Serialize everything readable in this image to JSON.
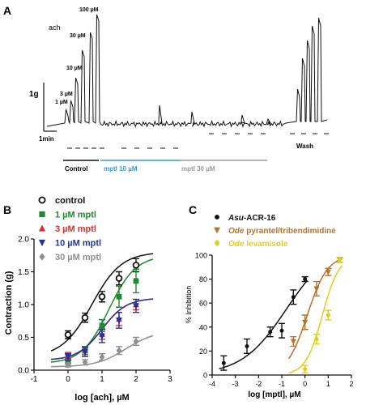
{
  "panel_labels": {
    "A": "A",
    "B": "B",
    "C": "C"
  },
  "panel_a": {
    "agonist_label": "ach",
    "conc_labels": [
      "1 µM",
      "3 µM",
      "10 µM",
      "30 µM",
      "100 µM"
    ],
    "scale_force": "1g",
    "scale_time": "1min",
    "bar_labels": {
      "control": "Control",
      "mptl10": "mptl 10 µM",
      "mptl30": "mptl 30 µM",
      "wash": "Wash"
    },
    "colors": {
      "trace": "#111111",
      "mptl10": "#2e9bd6",
      "mptl30": "#9a9a9a"
    }
  },
  "chart_data": [
    {
      "type": "scatter",
      "xlabel": "log [ach], µM",
      "ylabel": "Contraction (g)",
      "xlim": [
        -1,
        3
      ],
      "ylim": [
        0,
        2.0
      ],
      "xticks": [
        -1,
        0,
        1,
        2,
        3
      ],
      "yticks": [
        0.0,
        0.5,
        1.0,
        1.5,
        2.0
      ],
      "ytick_labels": [
        "0.0",
        "0.5",
        "1.0",
        "1.5",
        "2.0"
      ],
      "legend_position": "top-left",
      "series": [
        {
          "name": "control",
          "color": "#111111",
          "marker": "open-circle",
          "x": [
            0,
            0.5,
            1,
            1.5,
            2
          ],
          "y": [
            0.54,
            0.8,
            1.12,
            1.4,
            1.6
          ],
          "err": [
            0.06,
            0.07,
            0.08,
            0.1,
            0.1
          ],
          "fit": {
            "bottom": 0.2,
            "top": 1.8,
            "logEC50": 0.7,
            "hill": 1.0
          }
        },
        {
          "name": "1 µM mptl",
          "color": "#1e8a2e",
          "marker": "square",
          "x": [
            0,
            0.5,
            1,
            1.5,
            2
          ],
          "y": [
            0.14,
            0.3,
            0.68,
            1.12,
            1.36
          ],
          "err": [
            0.04,
            0.06,
            0.09,
            0.16,
            0.18
          ],
          "fit": {
            "bottom": 0.1,
            "top": 1.75,
            "logEC50": 1.2,
            "hill": 1.1
          }
        },
        {
          "name": "3 µM mptl",
          "color": "#d9302c",
          "marker": "triangle-up",
          "x": [
            0,
            0.5,
            1,
            1.5,
            2
          ],
          "y": [
            0.22,
            0.3,
            0.55,
            0.78,
            1.0
          ],
          "err": [
            0.05,
            0.06,
            0.08,
            0.1,
            0.08
          ],
          "fit": {
            "bottom": 0.15,
            "top": 1.1,
            "logEC50": 1.0,
            "hill": 1.2
          }
        },
        {
          "name": "10 µM mptl",
          "color": "#22339c",
          "marker": "triangle-down",
          "x": [
            0,
            0.5,
            1,
            1.5,
            2
          ],
          "y": [
            0.2,
            0.28,
            0.52,
            0.76,
            0.98
          ],
          "err": [
            0.05,
            0.07,
            0.1,
            0.12,
            0.1
          ],
          "fit": {
            "bottom": 0.15,
            "top": 1.1,
            "logEC50": 1.0,
            "hill": 1.2
          }
        },
        {
          "name": "30 µM mptl",
          "color": "#8f8f8f",
          "marker": "diamond",
          "x": [
            0,
            0.5,
            1,
            1.5,
            2
          ],
          "y": [
            0.08,
            0.12,
            0.2,
            0.3,
            0.44
          ],
          "err": [
            0.03,
            0.04,
            0.05,
            0.06,
            0.06
          ],
          "fit": {
            "bottom": 0.05,
            "top": 0.6,
            "logEC50": 1.7,
            "hill": 1.0
          }
        }
      ]
    },
    {
      "type": "scatter",
      "xlabel": "log [mptl], µM",
      "ylabel": "% Inhibition",
      "xlim": [
        -4,
        2
      ],
      "ylim": [
        0,
        100
      ],
      "xticks": [
        -4,
        -3,
        -2,
        -1,
        0,
        1,
        2
      ],
      "yticks": [
        0,
        20,
        40,
        60,
        80,
        100
      ],
      "ytick_labels": [
        "0",
        "20",
        "40",
        "60",
        "80",
        "100"
      ],
      "legend_position": "top",
      "series": [
        {
          "name": "Asu-ACR-16",
          "name_italic": "Asu",
          "name_rest": "-ACR-16",
          "color": "#111111",
          "marker": "circle",
          "x": [
            -3.5,
            -2.5,
            -1.5,
            -1,
            -0.5,
            0
          ],
          "y": [
            10,
            24,
            36,
            37,
            65,
            80
          ],
          "err": [
            6,
            6,
            4,
            6,
            6,
            2
          ],
          "fit": {
            "bottom": 0,
            "top": 110,
            "logEC50": -0.8,
            "hill": 0.45,
            "xmin": -3.7,
            "xmax": 0.1
          }
        },
        {
          "name": "Ode pyrantel/tribendimidine",
          "name_italic": "Ode",
          "name_rest": " pyrantel/tribendimidine",
          "color": "#b8732a",
          "marker": "triangle-down",
          "x": [
            -0.5,
            0,
            0.5,
            1,
            1.5
          ],
          "y": [
            28,
            44,
            72,
            86,
            96
          ],
          "err": [
            4,
            6,
            6,
            3,
            2
          ],
          "fit": {
            "bottom": 0,
            "top": 100,
            "logEC50": 0.1,
            "hill": 1.0,
            "xmin": -0.7,
            "xmax": 1.5
          }
        },
        {
          "name": "Ode levamisole",
          "name_italic": "Ode",
          "name_rest": " levamisole",
          "color": "#e3cd1e",
          "marker": "diamond",
          "x": [
            0,
            0.5,
            1,
            1.5
          ],
          "y": [
            5,
            30,
            50,
            96
          ],
          "err": [
            3,
            4,
            4,
            2
          ],
          "fit": {
            "bottom": 0,
            "top": 100,
            "logEC50": 0.75,
            "hill": 1.2,
            "xmin": -0.7,
            "xmax": 1.6
          }
        }
      ]
    }
  ]
}
